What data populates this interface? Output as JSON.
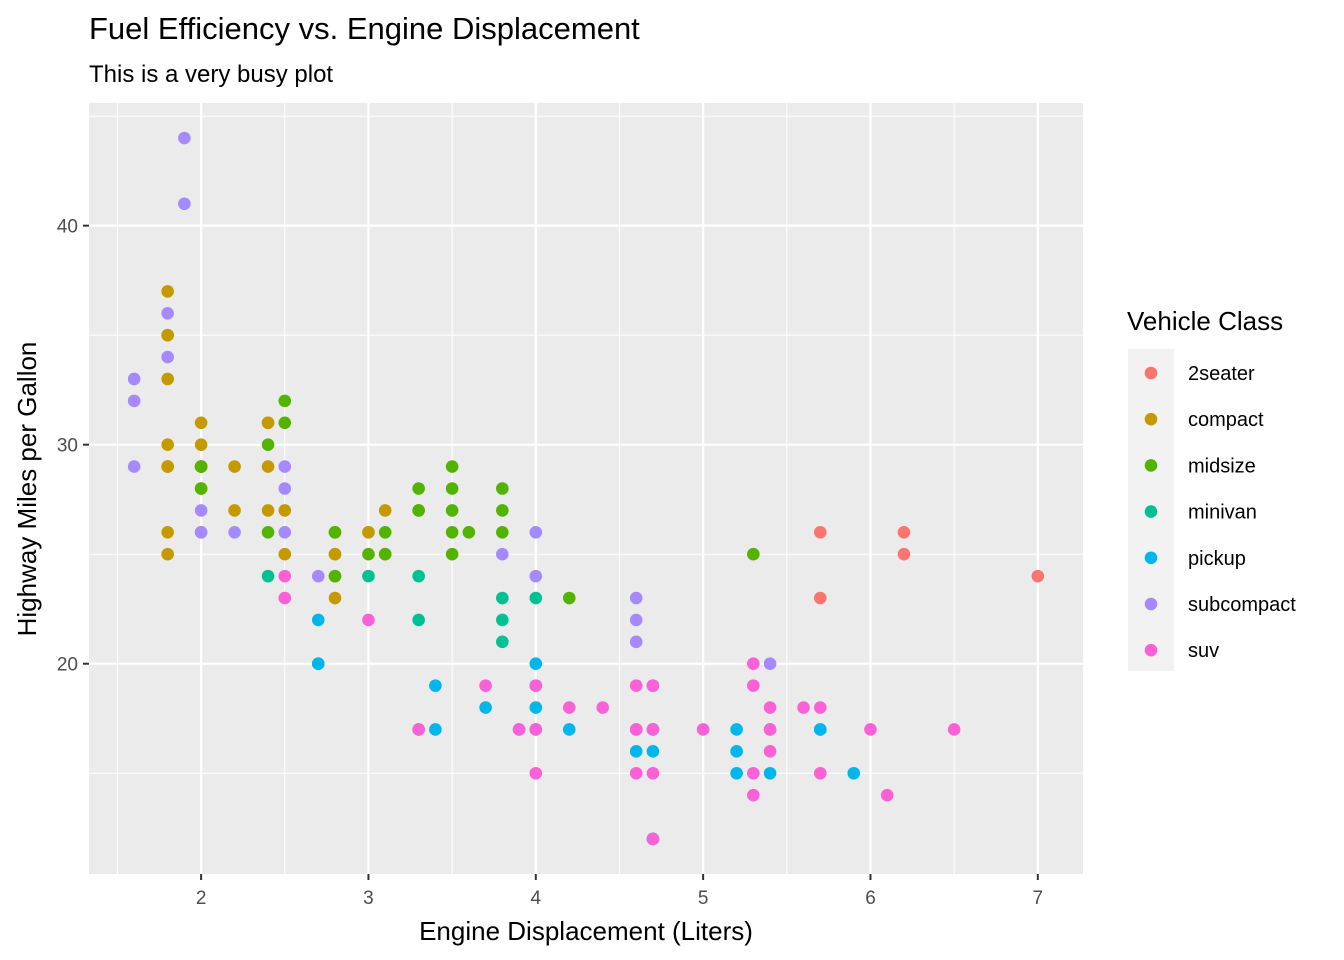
{
  "chart_data": {
    "type": "scatter",
    "title": "Fuel Efficiency vs. Engine Displacement",
    "subtitle": "This is a very busy plot",
    "xlabel": "Engine Displacement (Liters)",
    "ylabel": "Highway Miles per Gallon",
    "xlim": [
      1.33,
      7.27
    ],
    "ylim": [
      10.4,
      45.6
    ],
    "xticks": [
      2,
      3,
      4,
      5,
      6,
      7
    ],
    "yticks": [
      20,
      30,
      40
    ],
    "grid": true,
    "legend": {
      "title": "Vehicle Class",
      "placement": "right"
    },
    "series": [
      {
        "name": "2seater",
        "color": "#F8766D",
        "points": [
          [
            5.7,
            26
          ],
          [
            5.7,
            23
          ],
          [
            6.2,
            26
          ],
          [
            6.2,
            25
          ],
          [
            7.0,
            24
          ]
        ]
      },
      {
        "name": "compact",
        "color": "#C49A00",
        "points": [
          [
            1.8,
            29
          ],
          [
            1.8,
            29
          ],
          [
            2.0,
            31
          ],
          [
            2.0,
            30
          ],
          [
            2.8,
            26
          ],
          [
            2.8,
            26
          ],
          [
            3.1,
            27
          ],
          [
            1.8,
            26
          ],
          [
            1.8,
            25
          ],
          [
            2.0,
            28
          ],
          [
            2.0,
            29
          ],
          [
            2.8,
            25
          ],
          [
            2.8,
            25
          ],
          [
            3.1,
            25
          ],
          [
            2.2,
            27
          ],
          [
            2.2,
            29
          ],
          [
            2.4,
            31
          ],
          [
            2.4,
            31
          ],
          [
            3.0,
            26
          ],
          [
            3.0,
            26
          ],
          [
            3.3,
            27
          ],
          [
            1.8,
            33
          ],
          [
            1.8,
            35
          ],
          [
            1.8,
            37
          ],
          [
            1.8,
            35
          ],
          [
            1.8,
            30
          ],
          [
            2.0,
            29
          ],
          [
            2.5,
            27
          ],
          [
            2.5,
            25
          ],
          [
            2.8,
            23
          ],
          [
            2.8,
            24
          ],
          [
            2.4,
            27
          ],
          [
            2.4,
            29
          ],
          [
            2.0,
            26
          ]
        ]
      },
      {
        "name": "midsize",
        "color": "#53B400",
        "points": [
          [
            2.4,
            26
          ],
          [
            2.4,
            30
          ],
          [
            2.5,
            31
          ],
          [
            2.5,
            32
          ],
          [
            3.3,
            28
          ],
          [
            3.3,
            27
          ],
          [
            3.5,
            29
          ],
          [
            3.5,
            28
          ],
          [
            3.5,
            27
          ],
          [
            3.8,
            28
          ],
          [
            3.8,
            27
          ],
          [
            3.8,
            26
          ],
          [
            3.5,
            26
          ],
          [
            3.6,
            26
          ],
          [
            2.0,
            28
          ],
          [
            2.0,
            29
          ],
          [
            2.8,
            26
          ],
          [
            3.1,
            26
          ],
          [
            3.5,
            25
          ],
          [
            4.2,
            23
          ],
          [
            5.3,
            25
          ],
          [
            3.0,
            25
          ],
          [
            2.0,
            29
          ],
          [
            2.8,
            24
          ],
          [
            3.1,
            25
          ]
        ]
      },
      {
        "name": "minivan",
        "color": "#00C094",
        "points": [
          [
            2.4,
            24
          ],
          [
            3.0,
            24
          ],
          [
            3.3,
            22
          ],
          [
            3.3,
            24
          ],
          [
            3.8,
            23
          ],
          [
            3.8,
            22
          ],
          [
            3.8,
            21
          ],
          [
            4.0,
            23
          ],
          [
            3.3,
            17
          ]
        ]
      },
      {
        "name": "pickup",
        "color": "#00B6EB",
        "points": [
          [
            2.7,
            20
          ],
          [
            2.7,
            20
          ],
          [
            2.7,
            22
          ],
          [
            3.4,
            17
          ],
          [
            3.4,
            19
          ],
          [
            3.7,
            18
          ],
          [
            3.9,
            17
          ],
          [
            4.0,
            20
          ],
          [
            4.0,
            18
          ],
          [
            4.0,
            17
          ],
          [
            4.0,
            19
          ],
          [
            4.2,
            17
          ],
          [
            4.6,
            17
          ],
          [
            4.6,
            16
          ],
          [
            4.7,
            17
          ],
          [
            4.7,
            16
          ],
          [
            4.7,
            19
          ],
          [
            4.7,
            12
          ],
          [
            5.2,
            17
          ],
          [
            5.2,
            16
          ],
          [
            5.2,
            15
          ],
          [
            5.4,
            17
          ],
          [
            5.4,
            15
          ],
          [
            5.7,
            17
          ],
          [
            5.9,
            15
          ],
          [
            4.7,
            17
          ],
          [
            4.7,
            12
          ],
          [
            5.7,
            17
          ]
        ]
      },
      {
        "name": "subcompact",
        "color": "#A58AFF",
        "points": [
          [
            1.6,
            33
          ],
          [
            1.6,
            32
          ],
          [
            1.6,
            29
          ],
          [
            1.8,
            34
          ],
          [
            1.8,
            36
          ],
          [
            1.9,
            44
          ],
          [
            1.9,
            41
          ],
          [
            2.0,
            27
          ],
          [
            2.0,
            26
          ],
          [
            2.2,
            26
          ],
          [
            2.5,
            26
          ],
          [
            2.5,
            28
          ],
          [
            2.5,
            29
          ],
          [
            2.7,
            24
          ],
          [
            3.8,
            25
          ],
          [
            4.0,
            26
          ],
          [
            4.0,
            24
          ],
          [
            4.6,
            23
          ],
          [
            4.6,
            22
          ],
          [
            4.6,
            21
          ],
          [
            5.4,
            20
          ]
        ]
      },
      {
        "name": "suv",
        "color": "#FB61D7",
        "points": [
          [
            2.5,
            24
          ],
          [
            2.5,
            23
          ],
          [
            3.0,
            22
          ],
          [
            3.3,
            17
          ],
          [
            3.7,
            19
          ],
          [
            3.9,
            17
          ],
          [
            4.0,
            19
          ],
          [
            4.0,
            17
          ],
          [
            4.0,
            15
          ],
          [
            4.2,
            18
          ],
          [
            4.4,
            18
          ],
          [
            4.6,
            19
          ],
          [
            4.6,
            17
          ],
          [
            4.6,
            15
          ],
          [
            4.7,
            17
          ],
          [
            4.7,
            15
          ],
          [
            4.7,
            19
          ],
          [
            4.7,
            12
          ],
          [
            5.0,
            17
          ],
          [
            5.3,
            20
          ],
          [
            5.3,
            19
          ],
          [
            5.3,
            15
          ],
          [
            5.3,
            14
          ],
          [
            5.4,
            18
          ],
          [
            5.4,
            17
          ],
          [
            5.4,
            16
          ],
          [
            5.6,
            18
          ],
          [
            5.7,
            18
          ],
          [
            5.7,
            15
          ],
          [
            6.0,
            17
          ],
          [
            6.1,
            14
          ],
          [
            6.5,
            17
          ]
        ]
      }
    ]
  }
}
